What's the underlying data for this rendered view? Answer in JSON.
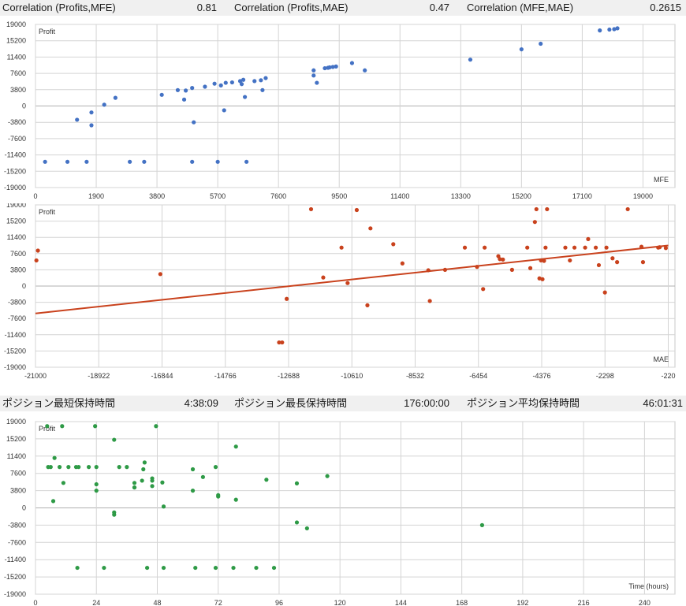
{
  "stats_top": [
    {
      "label": "Correlation (Profits,MFE)",
      "value": "0.81"
    },
    {
      "label": "Correlation (Profits,MAE)",
      "value": "0.47"
    },
    {
      "label": "Correlation (MFE,MAE)",
      "value": "0.2615"
    }
  ],
  "stats_mid": [
    {
      "label": "ポジション最短保持時間",
      "value": "4:38:09"
    },
    {
      "label": "ポジション最長保持時間",
      "value": "176:00:00"
    },
    {
      "label": "ポジション平均保持時間",
      "value": "46:01:31"
    }
  ],
  "colors": {
    "mfe": "#4472c4",
    "mae": "#c9421d",
    "time": "#2e9a46",
    "grid": "#d4d4d4",
    "statbar": "#f0f0f0"
  },
  "chart_data": [
    {
      "type": "scatter",
      "ylabel": "Profit",
      "xlabel": "MFE",
      "xlim": [
        0,
        20000
      ],
      "ylim": [
        -19000,
        19000
      ],
      "xticks": [
        0,
        1900,
        3800,
        5700,
        7600,
        9500,
        11400,
        13300,
        15200,
        17100,
        19000
      ],
      "yticks": [
        -19000,
        -15200,
        -11400,
        -7600,
        -3800,
        0,
        3800,
        7600,
        11400,
        15200,
        19000
      ],
      "grid": true,
      "points": [
        [
          300,
          -13000
        ],
        [
          1000,
          -13000
        ],
        [
          1600,
          -13000
        ],
        [
          2950,
          -13000
        ],
        [
          3400,
          -13000
        ],
        [
          4900,
          -13000
        ],
        [
          5700,
          -13000
        ],
        [
          6600,
          -13000
        ],
        [
          1300,
          -3200
        ],
        [
          1750,
          -1500
        ],
        [
          1750,
          -4500
        ],
        [
          2150,
          300
        ],
        [
          2500,
          1900
        ],
        [
          3950,
          2600
        ],
        [
          4450,
          3700
        ],
        [
          4650,
          1500
        ],
        [
          4700,
          3600
        ],
        [
          4900,
          4200
        ],
        [
          4950,
          -3800
        ],
        [
          5300,
          4500
        ],
        [
          5600,
          5200
        ],
        [
          5800,
          4800
        ],
        [
          5900,
          -1000
        ],
        [
          5950,
          5400
        ],
        [
          6150,
          5500
        ],
        [
          6400,
          5800
        ],
        [
          6450,
          5100
        ],
        [
          6500,
          6100
        ],
        [
          6550,
          2100
        ],
        [
          6850,
          5800
        ],
        [
          7050,
          6000
        ],
        [
          7100,
          3700
        ],
        [
          7200,
          6500
        ],
        [
          8700,
          8300
        ],
        [
          8700,
          7100
        ],
        [
          8800,
          5400
        ],
        [
          9050,
          8800
        ],
        [
          9150,
          8900
        ],
        [
          9200,
          9000
        ],
        [
          9300,
          9100
        ],
        [
          9400,
          9200
        ],
        [
          9900,
          10000
        ],
        [
          10300,
          8300
        ],
        [
          13600,
          10800
        ],
        [
          15200,
          13200
        ],
        [
          15800,
          14500
        ],
        [
          17650,
          17600
        ],
        [
          17950,
          17800
        ],
        [
          18100,
          17900
        ],
        [
          18200,
          18100
        ]
      ]
    },
    {
      "type": "scatter",
      "ylabel": "Profit",
      "xlabel": "MAE",
      "xlim": [
        -21000,
        0
      ],
      "ylim": [
        -19000,
        19000
      ],
      "xticks": [
        -21000,
        -18922,
        -16844,
        -14766,
        -12688,
        -10610,
        -8532,
        -6454,
        -4376,
        -2298,
        -220
      ],
      "yticks": [
        -19000,
        -15200,
        -11400,
        -7600,
        -3800,
        0,
        3800,
        7600,
        11400,
        15200,
        19000
      ],
      "grid": true,
      "trendline": [
        [
          -21000,
          -6400
        ],
        [
          -220,
          9500
        ]
      ],
      "points": [
        [
          -20920,
          8300
        ],
        [
          -20970,
          6000
        ],
        [
          -16900,
          2800
        ],
        [
          -13000,
          -13200
        ],
        [
          -12900,
          -13200
        ],
        [
          -12750,
          -3000
        ],
        [
          -11950,
          18000
        ],
        [
          -11550,
          2000
        ],
        [
          -10950,
          9000
        ],
        [
          -10750,
          700
        ],
        [
          -10450,
          17800
        ],
        [
          -10100,
          -4500
        ],
        [
          -10000,
          13500
        ],
        [
          -9250,
          9800
        ],
        [
          -8950,
          5300
        ],
        [
          -8100,
          3700
        ],
        [
          -8050,
          -3500
        ],
        [
          -7550,
          3800
        ],
        [
          -6900,
          9000
        ],
        [
          -6500,
          4500
        ],
        [
          -6300,
          -700
        ],
        [
          -6250,
          9000
        ],
        [
          -5800,
          7000
        ],
        [
          -5750,
          6300
        ],
        [
          -5650,
          6200
        ],
        [
          -5350,
          3800
        ],
        [
          -4750,
          4200
        ],
        [
          -4550,
          18000
        ],
        [
          -4850,
          9000
        ],
        [
          -4600,
          15000
        ],
        [
          -4450,
          1800
        ],
        [
          -4400,
          6000
        ],
        [
          -4350,
          1600
        ],
        [
          -4300,
          5900
        ],
        [
          -4250,
          9000
        ],
        [
          -4200,
          18000
        ],
        [
          -3600,
          9000
        ],
        [
          -3450,
          6000
        ],
        [
          -3300,
          9000
        ],
        [
          -2950,
          9000
        ],
        [
          -2850,
          11000
        ],
        [
          -2600,
          9000
        ],
        [
          -2500,
          4900
        ],
        [
          -2300,
          -1500
        ],
        [
          -2250,
          9000
        ],
        [
          -2050,
          6500
        ],
        [
          -1900,
          5600
        ],
        [
          -1550,
          18000
        ],
        [
          -1100,
          9200
        ],
        [
          -1050,
          5600
        ],
        [
          -500,
          9100
        ],
        [
          -300,
          8900
        ],
        [
          -550,
          9000
        ]
      ]
    },
    {
      "type": "scatter",
      "ylabel": "Profit",
      "xlabel": "Time (hours)",
      "xlim": [
        0,
        252
      ],
      "ylim": [
        -19000,
        19000
      ],
      "xticks": [
        0,
        24,
        48,
        72,
        96,
        120,
        144,
        168,
        192,
        216,
        240
      ],
      "yticks": [
        -19000,
        -15200,
        -11400,
        -7600,
        -3800,
        0,
        3800,
        7600,
        11400,
        15200,
        19000
      ],
      "grid": true,
      "points": [
        [
          4.6,
          18000
        ],
        [
          5,
          9000
        ],
        [
          6,
          9000
        ],
        [
          7,
          1500
        ],
        [
          7.5,
          11000
        ],
        [
          9.5,
          9000
        ],
        [
          10.5,
          18000
        ],
        [
          11,
          5500
        ],
        [
          13,
          9000
        ],
        [
          16,
          9000
        ],
        [
          16.5,
          -13200
        ],
        [
          17,
          9000
        ],
        [
          21,
          9000
        ],
        [
          23.5,
          18000
        ],
        [
          24,
          9000
        ],
        [
          24,
          5200
        ],
        [
          24,
          3800
        ],
        [
          27,
          -13200
        ],
        [
          31,
          -1000
        ],
        [
          31,
          -1500
        ],
        [
          31,
          15000
        ],
        [
          33,
          9000
        ],
        [
          36,
          9000
        ],
        [
          39,
          5500
        ],
        [
          39,
          4500
        ],
        [
          39,
          4500
        ],
        [
          42,
          6000
        ],
        [
          42.5,
          8500
        ],
        [
          43,
          10000
        ],
        [
          44,
          -13200
        ],
        [
          46,
          6000
        ],
        [
          46,
          6500
        ],
        [
          46,
          4800
        ],
        [
          47.5,
          18000
        ],
        [
          50,
          5600
        ],
        [
          50.5,
          -13200
        ],
        [
          50.5,
          300
        ],
        [
          62,
          8500
        ],
        [
          62,
          3800
        ],
        [
          63,
          -13200
        ],
        [
          66,
          6800
        ],
        [
          71,
          -13200
        ],
        [
          71,
          9000
        ],
        [
          72,
          2800
        ],
        [
          72,
          2500
        ],
        [
          78,
          -13200
        ],
        [
          79,
          13500
        ],
        [
          79,
          1800
        ],
        [
          87,
          -13200
        ],
        [
          91,
          6200
        ],
        [
          94,
          -13200
        ],
        [
          103,
          5400
        ],
        [
          103,
          -3200
        ],
        [
          107,
          -4500
        ],
        [
          115,
          7000
        ],
        [
          176,
          -3800
        ]
      ]
    }
  ]
}
